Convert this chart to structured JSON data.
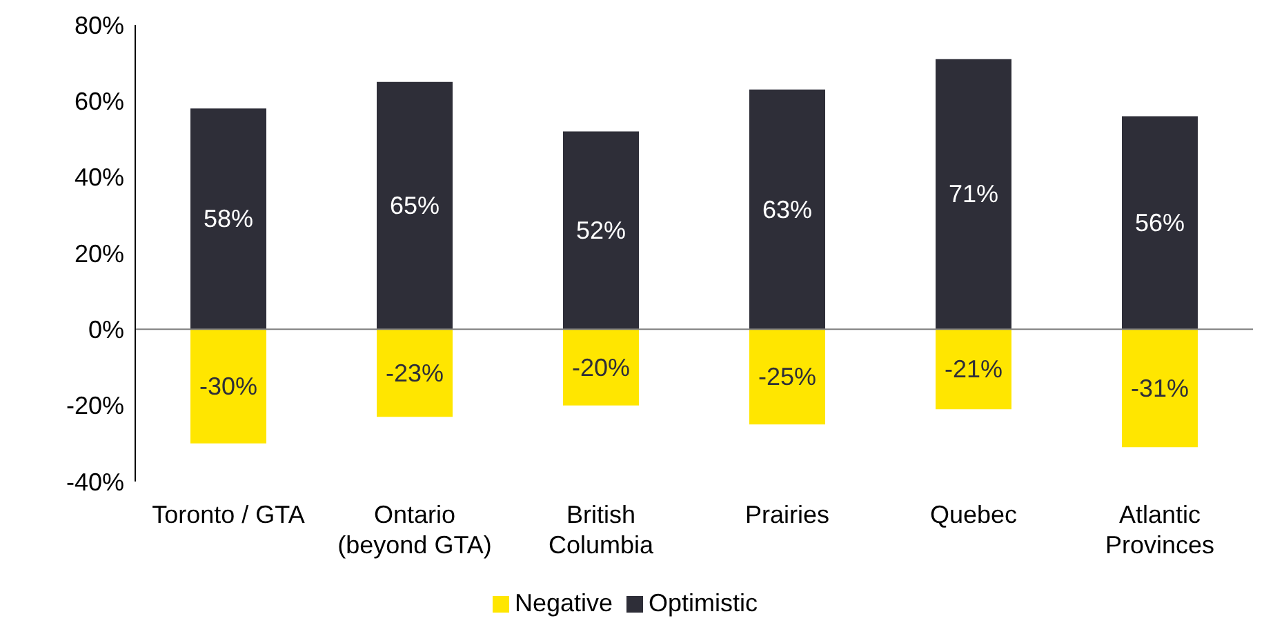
{
  "chart_data": {
    "type": "bar",
    "stacked": true,
    "categories": [
      "Toronto / GTA",
      "Ontario\n(beyond GTA)",
      "British\nColumbia",
      "Prairies",
      "Quebec",
      "Atlantic\nProvinces"
    ],
    "series": [
      {
        "name": "Negative",
        "color": "#ffe600",
        "values": [
          -30,
          -23,
          -20,
          -25,
          -21,
          -31
        ],
        "value_labels": [
          "-30%",
          "-23%",
          "-20%",
          "-25%",
          "-21%",
          "-31%"
        ]
      },
      {
        "name": "Optimistic",
        "color": "#2e2e38",
        "values": [
          58,
          65,
          52,
          63,
          71,
          56
        ],
        "value_labels": [
          "58%",
          "65%",
          "52%",
          "63%",
          "71%",
          "56%"
        ]
      }
    ],
    "ylim": [
      -40,
      80
    ],
    "yticks": [
      {
        "value": -40,
        "label": "-40%"
      },
      {
        "value": -20,
        "label": "-20%"
      },
      {
        "value": 0,
        "label": "0%"
      },
      {
        "value": 20,
        "label": "20%"
      },
      {
        "value": 40,
        "label": "40%"
      },
      {
        "value": 60,
        "label": "60%"
      },
      {
        "value": 80,
        "label": "80%"
      }
    ],
    "legend": "bottom"
  }
}
